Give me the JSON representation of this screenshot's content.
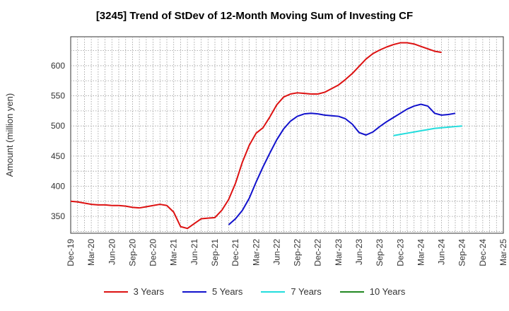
{
  "chart_data": {
    "type": "line",
    "title": "[3245]  Trend of StDev of 12-Month Moving Sum of Investing CF",
    "ylabel": "Amount (million yen)",
    "xlabel": "",
    "ylim": [
      322,
      648
    ],
    "yticks": [
      350,
      400,
      450,
      500,
      550,
      600
    ],
    "x_ticks": [
      "Dec-19",
      "Mar-20",
      "Jun-20",
      "Sep-20",
      "Dec-20",
      "Mar-21",
      "Jun-21",
      "Sep-21",
      "Dec-21",
      "Mar-22",
      "Jun-22",
      "Sep-22",
      "Dec-22",
      "Mar-23",
      "Jun-23",
      "Sep-23",
      "Dec-23",
      "Mar-24",
      "Jun-24",
      "Sep-24",
      "Dec-24",
      "Mar-25"
    ],
    "x_start": "Dec-19",
    "x_end": "Mar-25",
    "grid": true,
    "legend_position": "bottom",
    "series": [
      {
        "name": "3 Years",
        "color": "#dd1111",
        "start": "Dec-19",
        "values": [
          375,
          374,
          372,
          370,
          369,
          369,
          368,
          368,
          367,
          365,
          364,
          366,
          368,
          370,
          368,
          357,
          333,
          330,
          338,
          346,
          347,
          348,
          360,
          378,
          405,
          440,
          468,
          488,
          497,
          515,
          535,
          548,
          553,
          555,
          554,
          553,
          553,
          556,
          562,
          568,
          577,
          587,
          599,
          611,
          620,
          626,
          631,
          635,
          638,
          638,
          636,
          632,
          628,
          624,
          622
        ]
      },
      {
        "name": "5 Years",
        "color": "#1111cc",
        "start": "Nov-21",
        "values": [
          336,
          346,
          360,
          380,
          407,
          432,
          455,
          477,
          495,
          508,
          516,
          520,
          521,
          520,
          518,
          517,
          516,
          512,
          503,
          489,
          485,
          490,
          499,
          507,
          514,
          521,
          528,
          533,
          536,
          533,
          521,
          518,
          519,
          521
        ]
      },
      {
        "name": "7 Years",
        "color": "#22dddd",
        "start": "Nov-23",
        "values": [
          484,
          486,
          488,
          490,
          492,
          494,
          496,
          497,
          498,
          499,
          500
        ]
      },
      {
        "name": "10 Years",
        "color": "#228822",
        "start": "Sep-24",
        "values": []
      }
    ]
  }
}
